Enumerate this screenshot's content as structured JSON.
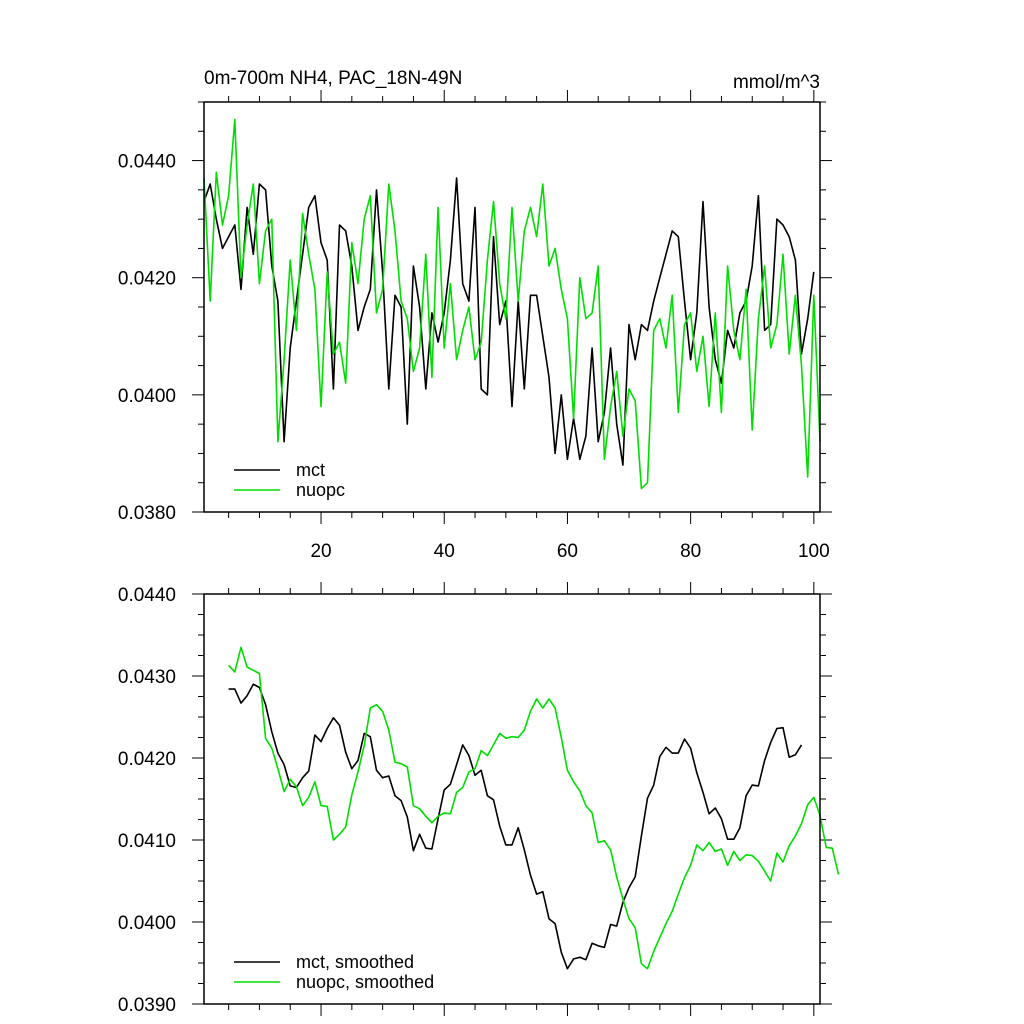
{
  "chart_data": [
    {
      "type": "line",
      "title": "0m-700m NH4, PAC_18N-49N",
      "units": "mmol/m^3",
      "xlim": [
        1,
        101
      ],
      "ylim": [
        0.038,
        0.045
      ],
      "xticks": [
        "20",
        "40",
        "60",
        "80",
        "100"
      ],
      "yticks": [
        "0.0380",
        "0.0400",
        "0.0420",
        "0.0440"
      ],
      "series": [
        {
          "name": "mct",
          "color": "#000000",
          "values": [
            0.0433,
            0.0436,
            0.043,
            0.0425,
            0.0427,
            0.0429,
            0.0418,
            0.0432,
            0.0424,
            0.0436,
            0.0435,
            0.0422,
            0.0416,
            0.0392,
            0.0408,
            0.0416,
            0.0424,
            0.0432,
            0.0434,
            0.0426,
            0.0423,
            0.0401,
            0.0429,
            0.0428,
            0.0422,
            0.0411,
            0.0415,
            0.0418,
            0.0435,
            0.0421,
            0.0401,
            0.0417,
            0.0415,
            0.0395,
            0.0422,
            0.0415,
            0.0401,
            0.0414,
            0.0409,
            0.0414,
            0.0423,
            0.0437,
            0.0419,
            0.0416,
            0.0432,
            0.0401,
            0.04,
            0.0427,
            0.0412,
            0.0416,
            0.0398,
            0.0416,
            0.0401,
            0.0417,
            0.0417,
            0.041,
            0.0403,
            0.039,
            0.04,
            0.0389,
            0.0396,
            0.0389,
            0.0393,
            0.0408,
            0.0392,
            0.0397,
            0.0408,
            0.0395,
            0.0388,
            0.0412,
            0.0406,
            0.0412,
            0.0411,
            0.0416,
            0.042,
            0.0424,
            0.0428,
            0.0427,
            0.0416,
            0.0406,
            0.0414,
            0.0433,
            0.0415,
            0.0406,
            0.0402,
            0.0411,
            0.0408,
            0.0414,
            0.0416,
            0.0422,
            0.0434,
            0.0411,
            0.0412,
            0.043,
            0.0429,
            0.0427,
            0.0423,
            0.0407,
            0.0413,
            0.0421
          ]
        },
        {
          "name": "nuopc",
          "color": "#00dd00",
          "values": [
            0.0437,
            0.0416,
            0.0438,
            0.0429,
            0.0434,
            0.0447,
            0.042,
            0.0429,
            0.0436,
            0.0419,
            0.0428,
            0.043,
            0.0392,
            0.0406,
            0.0423,
            0.0411,
            0.0431,
            0.0424,
            0.0418,
            0.0398,
            0.0421,
            0.0407,
            0.0409,
            0.0402,
            0.0426,
            0.0419,
            0.043,
            0.0434,
            0.0414,
            0.0418,
            0.0436,
            0.0428,
            0.0416,
            0.0413,
            0.0404,
            0.0408,
            0.0424,
            0.0403,
            0.0432,
            0.0408,
            0.0419,
            0.0406,
            0.0411,
            0.0415,
            0.0406,
            0.0409,
            0.0423,
            0.0433,
            0.0419,
            0.0413,
            0.0432,
            0.0416,
            0.0428,
            0.0432,
            0.0427,
            0.0436,
            0.0422,
            0.0425,
            0.0418,
            0.0413,
            0.0396,
            0.042,
            0.0413,
            0.0414,
            0.0422,
            0.0389,
            0.0398,
            0.0404,
            0.0393,
            0.0401,
            0.0399,
            0.0384,
            0.0385,
            0.0411,
            0.0413,
            0.0408,
            0.0417,
            0.0397,
            0.0412,
            0.0414,
            0.0404,
            0.041,
            0.0398,
            0.0414,
            0.0397,
            0.0422,
            0.0411,
            0.0406,
            0.0418,
            0.0394,
            0.0413,
            0.0422,
            0.0408,
            0.0412,
            0.0424,
            0.0407,
            0.0417,
            0.0405,
            0.0386,
            0.0417,
            0.0392
          ]
        }
      ]
    },
    {
      "type": "line",
      "xlim": [
        1,
        101
      ],
      "ylim": [
        0.039,
        0.044
      ],
      "yticks": [
        "0.0390",
        "0.0400",
        "0.0410",
        "0.0420",
        "0.0430",
        "0.0440"
      ],
      "series": [
        {
          "name": "mct, smoothed",
          "color": "#000000",
          "x_start": 5,
          "values": [
            0.04284,
            0.04284,
            0.04267,
            0.04276,
            0.0429,
            0.04286,
            0.04265,
            0.04232,
            0.04206,
            0.04192,
            0.04166,
            0.04164,
            0.04176,
            0.04184,
            0.04228,
            0.0422,
            0.04236,
            0.04249,
            0.0424,
            0.04207,
            0.04187,
            0.04197,
            0.0423,
            0.04226,
            0.04185,
            0.04176,
            0.04178,
            0.04154,
            0.04148,
            0.04128,
            0.04087,
            0.04107,
            0.0409,
            0.04089,
            0.04126,
            0.04161,
            0.04168,
            0.04192,
            0.04216,
            0.04203,
            0.04179,
            0.04185,
            0.04154,
            0.04149,
            0.04117,
            0.04094,
            0.04094,
            0.04115,
            0.04088,
            0.04057,
            0.04034,
            0.04037,
            0.04004,
            0.03998,
            0.03963,
            0.03943,
            0.03955,
            0.03957,
            0.03954,
            0.03974,
            0.03971,
            0.03969,
            0.03997,
            0.03995,
            0.04024,
            0.04042,
            0.04055,
            0.04105,
            0.04151,
            0.04167,
            0.04202,
            0.04213,
            0.04206,
            0.04206,
            0.04223,
            0.04212,
            0.04182,
            0.04158,
            0.04132,
            0.04139,
            0.04126,
            0.04101,
            0.04101,
            0.04115,
            0.04154,
            0.04167,
            0.04166,
            0.04197,
            0.04219,
            0.04236,
            0.04237,
            0.04201,
            0.04204,
            0.04216
          ]
        },
        {
          "name": "nuopc, smoothed",
          "color": "#00dd00",
          "x_start": 5,
          "values": [
            0.04313,
            0.04305,
            0.04335,
            0.04311,
            0.04307,
            0.04303,
            0.04224,
            0.04212,
            0.04187,
            0.04159,
            0.04174,
            0.04165,
            0.04142,
            0.04152,
            0.04171,
            0.04142,
            0.04141,
            0.041,
            0.04107,
            0.04116,
            0.04155,
            0.04183,
            0.04215,
            0.04261,
            0.04265,
            0.04257,
            0.04234,
            0.04195,
            0.04193,
            0.04189,
            0.04142,
            0.04138,
            0.04129,
            0.04121,
            0.04129,
            0.04133,
            0.04132,
            0.04158,
            0.04164,
            0.04183,
            0.04187,
            0.04209,
            0.04203,
            0.04216,
            0.0423,
            0.04224,
            0.04226,
            0.04225,
            0.04234,
            0.04257,
            0.04272,
            0.04261,
            0.04272,
            0.04261,
            0.04225,
            0.04185,
            0.04171,
            0.0416,
            0.04142,
            0.04133,
            0.04097,
            0.04099,
            0.04088,
            0.04055,
            0.04028,
            0.04004,
            0.03993,
            0.03949,
            0.03943,
            0.03964,
            0.03981,
            0.03998,
            0.04013,
            0.04034,
            0.04054,
            0.04069,
            0.04094,
            0.04087,
            0.04097,
            0.04086,
            0.04089,
            0.04069,
            0.04086,
            0.04075,
            0.04082,
            0.04081,
            0.04074,
            0.04062,
            0.0405,
            0.04084,
            0.04073,
            0.04093,
            0.04105,
            0.0412,
            0.04143,
            0.04152,
            0.0413,
            0.04091,
            0.0409,
            0.04058
          ]
        }
      ]
    }
  ]
}
